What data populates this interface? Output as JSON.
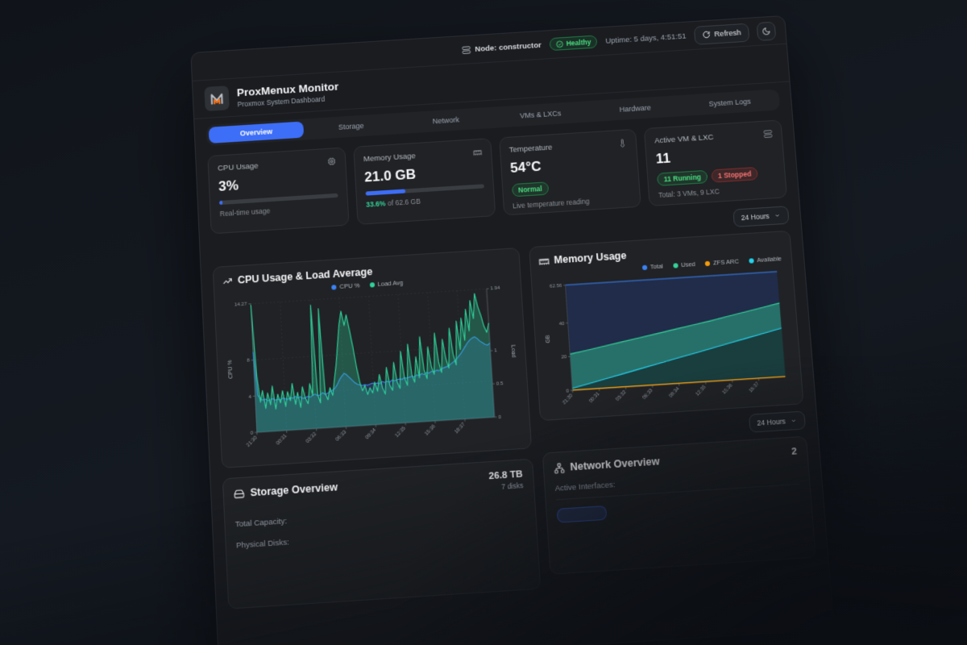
{
  "topbar": {
    "node_label": "Node: constructor",
    "health_label": "Healthy",
    "uptime": "Uptime: 5 days, 4:51:51",
    "refresh_label": "Refresh"
  },
  "header": {
    "title": "ProxMenux Monitor",
    "subtitle": "Proxmox System Dashboard"
  },
  "tabs": [
    {
      "label": "Overview",
      "active": true
    },
    {
      "label": "Storage",
      "active": false
    },
    {
      "label": "Network",
      "active": false
    },
    {
      "label": "VMs & LXCs",
      "active": false
    },
    {
      "label": "Hardware",
      "active": false
    },
    {
      "label": "System Logs",
      "active": false
    }
  ],
  "stats": {
    "cpu": {
      "label": "CPU Usage",
      "value": "3%",
      "percent": 3,
      "caption": "Real-time usage"
    },
    "memory": {
      "label": "Memory Usage",
      "value": "21.0 GB",
      "percent": 33.6,
      "caption_percent": "33.6%",
      "caption_rest": " of 62.6 GB"
    },
    "temperature": {
      "label": "Temperature",
      "value": "54°C",
      "badge": "Normal",
      "caption": "Live temperature reading"
    },
    "vm": {
      "label": "Active VM & LXC",
      "value": "11",
      "running_badge": "11 Running",
      "stopped_badge": "1 Stopped",
      "caption": "Total: 3 VMs, 9 LXC"
    }
  },
  "time_ranges": [
    "24 Hours",
    "24 Hours"
  ],
  "storage": {
    "title": "Storage Overview",
    "total_value": "26.8 TB",
    "disks_value": "7 disks",
    "rows": [
      {
        "label": "Total Capacity:"
      },
      {
        "label": "Physical Disks:"
      }
    ]
  },
  "network": {
    "title": "Network Overview",
    "count": "2",
    "interfaces_label": "Active Interfaces:"
  },
  "icons": {
    "topbar_node": "server-icon",
    "health": "check-circle-icon",
    "refresh": "refresh-icon",
    "theme": "moon-icon",
    "cpu_card": "cpu-icon",
    "memory_card": "memory-chip-icon",
    "temperature_card": "thermometer-icon",
    "vm_card": "server-stack-icon",
    "cpu_chart": "trending-up-icon",
    "memory_chart": "memory-chip-icon",
    "storage": "hard-drive-icon",
    "network": "network-nodes-icon",
    "dropdown": "chevron-down-icon",
    "logo": "proxmenux-m-logo"
  },
  "colors": {
    "accent_blue": "#3d6ef7",
    "green": "#34d399",
    "red": "#f87171",
    "orange": "#f59e0b",
    "cyan": "#22d3ee",
    "panel_bg": "#1a1c20",
    "card_bg": "#202225"
  },
  "chart_data": [
    {
      "type": "area",
      "title": "CPU Usage & Load Average",
      "legend": [
        {
          "label": "CPU %",
          "color": "#3b82f6"
        },
        {
          "label": "Load Avg",
          "color": "#2fd39b"
        }
      ],
      "x_ticks": [
        "21:30",
        "00:31",
        "03:32",
        "06:33",
        "09:34",
        "12:35",
        "15:36",
        "18:37"
      ],
      "yleft": {
        "label": "CPU %",
        "min": 0,
        "max": 14.27,
        "ticks": [
          {
            "v": 0,
            "l": "0"
          },
          {
            "v": 4,
            "l": "4"
          },
          {
            "v": 8,
            "l": "8"
          },
          {
            "v": 14.27,
            "l": "14.27"
          }
        ]
      },
      "yright": {
        "label": "Load",
        "min": 0,
        "max": 1.94,
        "ticks": [
          {
            "v": 0,
            "l": "0"
          },
          {
            "v": 0.5,
            "l": "0.5"
          },
          {
            "v": 1,
            "l": "1"
          },
          {
            "v": 1.94,
            "l": "1.94"
          }
        ]
      },
      "series": [
        {
          "name": "CPU %",
          "axis": "left",
          "color": "#3b82f6",
          "fill": "rgba(59,130,246,0.22)",
          "values": [
            8.9,
            4.1,
            3.7,
            3.5,
            3.6,
            3.4,
            3.5,
            3.6,
            3.4,
            3.5,
            3.4,
            3.6,
            3.5,
            3.4,
            3.6,
            3.5,
            3.7,
            3.5,
            3.6,
            3.4,
            3.5,
            3.6,
            3.5,
            3.7,
            3.8,
            3.6,
            3.7,
            3.9,
            3.7,
            3.8,
            4.0,
            4.1,
            4.3,
            4.7,
            5.2,
            5.6,
            5.9,
            5.7,
            5.4,
            5.1,
            4.8,
            4.6,
            4.5,
            4.4,
            4.5,
            4.4,
            4.5,
            4.6,
            4.5,
            4.6,
            4.5,
            4.7,
            4.6,
            4.7,
            4.6,
            4.8,
            4.7,
            4.8,
            4.9,
            4.8,
            5.0,
            4.9,
            5.0,
            5.1,
            5.0,
            5.2,
            5.1,
            5.3,
            5.2,
            5.4,
            5.3,
            5.5,
            5.4,
            5.6,
            5.5,
            5.7,
            5.8,
            5.9,
            6.0,
            6.2,
            6.4,
            6.6,
            6.9,
            7.2,
            7.6,
            8.0,
            8.4,
            8.7,
            8.9,
            9.0,
            8.8,
            8.5,
            8.3,
            8.1,
            8.0,
            8.2
          ]
        },
        {
          "name": "Load Avg",
          "axis": "right",
          "color": "#2fd39b",
          "fill": "rgba(47,211,155,0.30)",
          "values": [
            1.92,
            0.85,
            0.45,
            0.62,
            0.35,
            0.58,
            0.4,
            0.68,
            0.33,
            0.55,
            0.42,
            0.6,
            0.36,
            0.58,
            0.44,
            0.7,
            0.38,
            0.56,
            0.33,
            0.64,
            0.46,
            0.38,
            0.68,
            0.5,
            1.86,
            0.5,
            0.38,
            1.8,
            0.52,
            0.42,
            0.6,
            0.48,
            0.72,
            0.95,
            1.25,
            1.55,
            1.74,
            1.52,
            1.68,
            1.45,
            1.2,
            0.9,
            0.66,
            0.52,
            0.6,
            0.46,
            0.56,
            0.48,
            0.64,
            0.5,
            0.75,
            0.55,
            0.45,
            0.85,
            0.58,
            0.5,
            0.92,
            0.62,
            0.52,
            1.08,
            0.68,
            0.56,
            1.18,
            0.72,
            0.6,
            0.98,
            0.66,
            1.28,
            0.78,
            0.64,
            1.12,
            0.82,
            0.7,
            1.32,
            0.88,
            0.72,
            1.22,
            0.92,
            0.78,
            1.38,
            0.98,
            0.82,
            1.48,
            1.05,
            1.52,
            1.18,
            1.65,
            1.32,
            1.78,
            1.5,
            1.88,
            1.68,
            1.55,
            1.38,
            1.28,
            1.42
          ]
        }
      ]
    },
    {
      "type": "area",
      "title": "Memory Usage",
      "legend": [
        {
          "label": "Total",
          "color": "#3b82f6"
        },
        {
          "label": "Used",
          "color": "#34d399"
        },
        {
          "label": "ZFS ARC",
          "color": "#f59e0b"
        },
        {
          "label": "Available",
          "color": "#22d3ee"
        }
      ],
      "x_ticks": [
        "21:30",
        "00:31",
        "03:32",
        "06:33",
        "09:34",
        "12:35",
        "15:36",
        "18:37"
      ],
      "yleft": {
        "label": "GB",
        "min": 0,
        "max": 62.56,
        "ticks": [
          {
            "v": 0,
            "l": "0"
          },
          {
            "v": 20,
            "l": "20"
          },
          {
            "v": 40,
            "l": "40"
          },
          {
            "v": 62.56,
            "l": "62.56"
          }
        ]
      },
      "series": [
        {
          "name": "Total",
          "axis": "left",
          "color": "#3b82f6",
          "fill": "rgba(33,45,75,0.95)",
          "values": [
            62.56,
            62.56,
            62.56,
            62.56,
            62.56,
            62.56,
            62.56,
            62.56,
            62.56,
            62.56,
            62.56,
            62.56,
            62.56
          ]
        },
        {
          "name": "Used",
          "axis": "left",
          "color": "#34d399",
          "fill": "rgba(45,180,140,0.50)",
          "values": [
            21.5,
            23.2,
            25.0,
            26.8,
            28.6,
            30.4,
            32.2,
            34.0,
            35.8,
            37.8,
            39.8,
            41.8,
            43.8
          ]
        },
        {
          "name": "Available",
          "axis": "left",
          "color": "#22d3ee",
          "fill": "rgba(16,20,26,0.55)",
          "values": [
            1.2,
            3.5,
            5.8,
            8.1,
            10.4,
            12.7,
            15.0,
            17.3,
            19.6,
            21.9,
            24.2,
            26.5,
            28.8
          ]
        },
        {
          "name": "ZFS ARC",
          "axis": "left",
          "color": "#f59e0b",
          "fill": "none",
          "values": [
            0.2,
            0.2,
            0.2,
            0.2,
            0.2,
            0.2,
            0.2,
            0.2,
            0.2,
            0.2,
            0.2,
            0.2,
            0.2
          ]
        }
      ]
    }
  ]
}
